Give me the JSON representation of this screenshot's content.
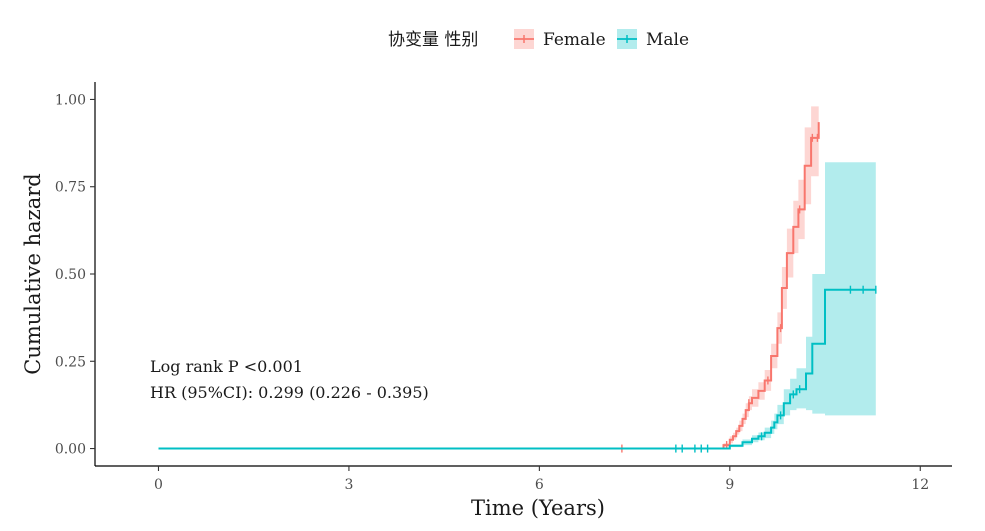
{
  "chart_data": {
    "type": "line",
    "title": "",
    "xlabel": "Time (Years)",
    "ylabel": "Cumulative hazard",
    "xlim": [
      -1,
      12.5
    ],
    "ylim": [
      -0.05,
      1.05
    ],
    "x_ticks": [
      0,
      3,
      6,
      9,
      12
    ],
    "x_tick_labels": [
      "0",
      "3",
      "6",
      "9",
      "12"
    ],
    "y_ticks": [
      0,
      0.25,
      0.5,
      0.75,
      1.0
    ],
    "y_tick_labels": [
      "0.00",
      "0.25",
      "0.50",
      "0.75",
      "1.00"
    ],
    "grid": false,
    "legend": {
      "title": "协变量 性别",
      "position": "top",
      "entries": [
        "Female",
        "Male"
      ]
    },
    "annotations": [
      "Log rank P <0.001",
      "HR (95%CI): 0.299 (0.226 - 0.395)"
    ],
    "series": [
      {
        "name": "Female",
        "color": "#F8766D",
        "band_color": "#F8766D",
        "steps": [
          [
            0,
            0.0
          ],
          [
            8.7,
            0.0
          ],
          [
            8.9,
            0.01
          ],
          [
            9.0,
            0.025
          ],
          [
            9.05,
            0.035
          ],
          [
            9.1,
            0.05
          ],
          [
            9.15,
            0.065
          ],
          [
            9.2,
            0.085
          ],
          [
            9.25,
            0.11
          ],
          [
            9.3,
            0.13
          ],
          [
            9.35,
            0.145
          ],
          [
            9.45,
            0.165
          ],
          [
            9.55,
            0.195
          ],
          [
            9.65,
            0.265
          ],
          [
            9.75,
            0.345
          ],
          [
            9.82,
            0.46
          ],
          [
            9.9,
            0.56
          ],
          [
            10.0,
            0.635
          ],
          [
            10.08,
            0.685
          ],
          [
            10.18,
            0.81
          ],
          [
            10.28,
            0.89
          ],
          [
            10.4,
            0.935
          ]
        ],
        "lower": [
          [
            0,
            0.0
          ],
          [
            8.7,
            0.0
          ],
          [
            8.9,
            0.005
          ],
          [
            9.0,
            0.015
          ],
          [
            9.05,
            0.025
          ],
          [
            9.1,
            0.04
          ],
          [
            9.15,
            0.05
          ],
          [
            9.2,
            0.07
          ],
          [
            9.25,
            0.09
          ],
          [
            9.3,
            0.11
          ],
          [
            9.35,
            0.12
          ],
          [
            9.45,
            0.14
          ],
          [
            9.55,
            0.165
          ],
          [
            9.65,
            0.23
          ],
          [
            9.75,
            0.3
          ],
          [
            9.82,
            0.4
          ],
          [
            9.9,
            0.49
          ],
          [
            10.0,
            0.56
          ],
          [
            10.08,
            0.6
          ],
          [
            10.18,
            0.7
          ],
          [
            10.28,
            0.78
          ],
          [
            10.4,
            0.82
          ]
        ],
        "upper": [
          [
            0,
            0.0
          ],
          [
            8.7,
            0.0
          ],
          [
            8.9,
            0.015
          ],
          [
            9.0,
            0.035
          ],
          [
            9.05,
            0.045
          ],
          [
            9.1,
            0.06
          ],
          [
            9.15,
            0.08
          ],
          [
            9.2,
            0.1
          ],
          [
            9.25,
            0.13
          ],
          [
            9.3,
            0.15
          ],
          [
            9.35,
            0.17
          ],
          [
            9.45,
            0.19
          ],
          [
            9.55,
            0.225
          ],
          [
            9.65,
            0.3
          ],
          [
            9.75,
            0.39
          ],
          [
            9.82,
            0.52
          ],
          [
            9.9,
            0.63
          ],
          [
            10.0,
            0.71
          ],
          [
            10.08,
            0.77
          ],
          [
            10.18,
            0.92
          ],
          [
            10.28,
            0.98
          ],
          [
            10.4,
            0.98
          ]
        ],
        "censored": [
          7.3,
          8.95,
          9.3,
          9.6,
          9.8,
          10.1,
          10.3,
          10.38
        ]
      },
      {
        "name": "Male",
        "color": "#00BFC4",
        "band_color": "#00BFC4",
        "steps": [
          [
            0,
            0.0
          ],
          [
            8.8,
            0.0
          ],
          [
            9.0,
            0.008
          ],
          [
            9.2,
            0.018
          ],
          [
            9.35,
            0.028
          ],
          [
            9.45,
            0.035
          ],
          [
            9.55,
            0.045
          ],
          [
            9.65,
            0.06
          ],
          [
            9.7,
            0.075
          ],
          [
            9.75,
            0.095
          ],
          [
            9.85,
            0.13
          ],
          [
            9.95,
            0.155
          ],
          [
            10.05,
            0.17
          ],
          [
            10.2,
            0.215
          ],
          [
            10.3,
            0.3
          ],
          [
            10.5,
            0.455
          ],
          [
            11.3,
            0.455
          ]
        ],
        "lower": [
          [
            0,
            0.0
          ],
          [
            8.8,
            0.0
          ],
          [
            9.0,
            0.004
          ],
          [
            9.2,
            0.01
          ],
          [
            9.35,
            0.018
          ],
          [
            9.45,
            0.024
          ],
          [
            9.55,
            0.03
          ],
          [
            9.65,
            0.042
          ],
          [
            9.7,
            0.055
          ],
          [
            9.75,
            0.07
          ],
          [
            9.85,
            0.095
          ],
          [
            9.95,
            0.11
          ],
          [
            10.05,
            0.115
          ],
          [
            10.2,
            0.11
          ],
          [
            10.3,
            0.1
          ],
          [
            10.5,
            0.095
          ],
          [
            11.3,
            0.095
          ]
        ],
        "upper": [
          [
            0,
            0.0
          ],
          [
            8.8,
            0.0
          ],
          [
            9.0,
            0.012
          ],
          [
            9.2,
            0.026
          ],
          [
            9.35,
            0.038
          ],
          [
            9.45,
            0.046
          ],
          [
            9.55,
            0.06
          ],
          [
            9.65,
            0.08
          ],
          [
            9.7,
            0.1
          ],
          [
            9.75,
            0.125
          ],
          [
            9.85,
            0.17
          ],
          [
            9.95,
            0.2
          ],
          [
            10.05,
            0.23
          ],
          [
            10.2,
            0.32
          ],
          [
            10.3,
            0.5
          ],
          [
            10.5,
            0.82
          ],
          [
            11.3,
            0.82
          ]
        ],
        "censored": [
          8.15,
          8.25,
          8.45,
          8.55,
          8.65,
          9.5,
          9.8,
          10.0,
          10.1,
          10.9,
          11.1,
          11.3
        ]
      }
    ]
  }
}
